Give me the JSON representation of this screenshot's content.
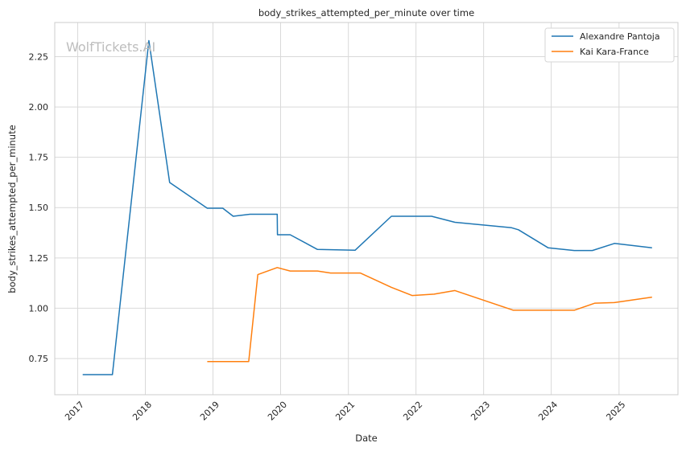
{
  "chart_data": {
    "type": "line",
    "title": "body_strikes_attempted_per_minute over time",
    "xlabel": "Date",
    "ylabel": "body_strikes_attempted_per_minute",
    "watermark": "WolfTickets.AI",
    "xlim": [
      "2016-08-30",
      "2025-11-15"
    ],
    "ylim": [
      0.57,
      2.42
    ],
    "x_ticks": [
      "2017",
      "2018",
      "2019",
      "2020",
      "2021",
      "2022",
      "2023",
      "2024",
      "2025"
    ],
    "y_ticks": [
      "0.75",
      "1.00",
      "1.25",
      "1.50",
      "1.75",
      "2.00",
      "2.25"
    ],
    "grid": true,
    "legend_position": "top-right",
    "series": [
      {
        "name": "Alexandre Pantoja",
        "color": "#1f77b4",
        "x": [
          "2017-01-28",
          "2017-07-07",
          "2018-01-20",
          "2018-05-12",
          "2018-12-01",
          "2019-02-23",
          "2019-04-20",
          "2019-07-20",
          "2019-12-14",
          "2019-12-15",
          "2020-02-22",
          "2020-07-18",
          "2021-02-06",
          "2021-08-21",
          "2022-03-26",
          "2022-07-30",
          "2023-06-01",
          "2023-07-08",
          "2023-12-16",
          "2024-05-04",
          "2024-08-10",
          "2024-12-07",
          "2025-06-28"
        ],
        "y": [
          0.67,
          0.67,
          2.33,
          1.625,
          1.497,
          1.497,
          1.457,
          1.467,
          1.467,
          1.365,
          1.365,
          1.292,
          1.288,
          1.457,
          1.457,
          1.427,
          1.4,
          1.39,
          1.3,
          1.287,
          1.287,
          1.322,
          1.3
        ]
      },
      {
        "name": "Kai Kara-France",
        "color": "#ff7f0e",
        "x": [
          "2018-12-01",
          "2019-07-13",
          "2019-08-31",
          "2019-12-14",
          "2020-02-22",
          "2020-07-18",
          "2020-09-27",
          "2021-03-06",
          "2021-08-21",
          "2021-12-11",
          "2022-04-09",
          "2022-07-30",
          "2023-06-10",
          "2023-11-18",
          "2024-05-04",
          "2024-08-24",
          "2024-12-07",
          "2025-06-28"
        ],
        "y": [
          0.735,
          0.735,
          1.167,
          1.202,
          1.185,
          1.185,
          1.175,
          1.175,
          1.104,
          1.063,
          1.07,
          1.088,
          0.99,
          0.99,
          0.99,
          1.025,
          1.028,
          1.055
        ]
      }
    ]
  }
}
